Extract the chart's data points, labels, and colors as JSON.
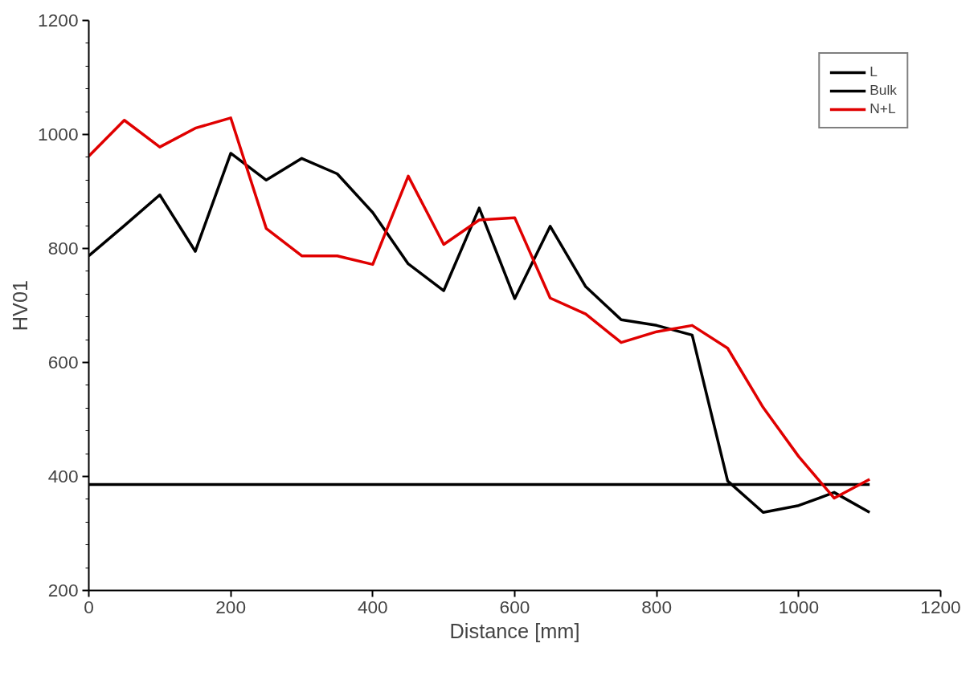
{
  "chart_data": {
    "type": "line",
    "xlabel": "Distance [mm]",
    "ylabel": "HV01",
    "xlim": [
      0,
      1200
    ],
    "xticks": [
      0,
      200,
      400,
      600,
      800,
      1000,
      1200
    ],
    "ylim": [
      200,
      1200
    ],
    "yticks": [
      200,
      400,
      600,
      800,
      1000,
      1200
    ],
    "grid": false,
    "legend": "top right",
    "marker": "none",
    "line_style": "solid",
    "series": [
      {
        "name": "L",
        "color": "#000000",
        "x": [
          0,
          50,
          100,
          150,
          200,
          250,
          300,
          350,
          400,
          450,
          500,
          550,
          600,
          650,
          700,
          750,
          800,
          850,
          900,
          950,
          1000,
          1050,
          1100
        ],
        "values": [
          787,
          840,
          894,
          795,
          967,
          920,
          958,
          931,
          863,
          773,
          726,
          871,
          712,
          839,
          733,
          675,
          665,
          648,
          392,
          337,
          349,
          372,
          337
        ]
      },
      {
        "name": "Bulk",
        "color": "#000000",
        "x": [
          0,
          1100
        ],
        "values": [
          386,
          386
        ]
      },
      {
        "name": "N+L",
        "color": "#e00000",
        "x": [
          0,
          50,
          100,
          150,
          200,
          250,
          300,
          350,
          400,
          450,
          500,
          550,
          600,
          650,
          700,
          750,
          800,
          850,
          900,
          950,
          1000,
          1050,
          1100
        ],
        "values": [
          962,
          1025,
          978,
          1011,
          1029,
          835,
          787,
          787,
          772,
          927,
          807,
          850,
          854,
          713,
          685,
          635,
          654,
          665,
          625,
          521,
          435,
          362,
          395
        ]
      }
    ]
  }
}
